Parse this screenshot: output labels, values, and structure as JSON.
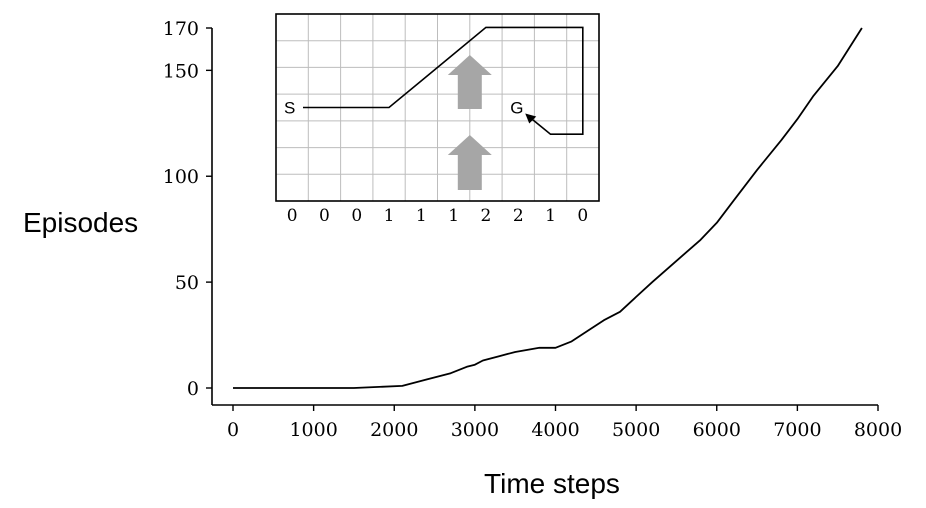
{
  "chart_data": {
    "type": "line",
    "xlabel": "Time steps",
    "ylabel": "Episodes",
    "xlim": [
      0,
      8000
    ],
    "ylim": [
      0,
      170
    ],
    "xticks": [
      0,
      1000,
      2000,
      3000,
      4000,
      5000,
      6000,
      7000,
      8000
    ],
    "yticks": [
      0,
      50,
      100,
      150,
      170
    ],
    "x_tick_labels": [
      "0",
      "1000",
      "2000",
      "3000",
      "4000",
      "5000",
      "6000",
      "7000",
      "8000"
    ],
    "y_tick_labels": [
      "0",
      "50",
      "100",
      "150",
      "170"
    ],
    "grid": false,
    "series": [
      {
        "x": [
          0,
          1000,
          1500,
          2100,
          2400,
          2700,
          2900,
          3000,
          3100,
          3300,
          3500,
          3800,
          4000,
          4200,
          4400,
          4600,
          4800,
          5000,
          5200,
          5500,
          5800,
          6000,
          6200,
          6500,
          6800,
          7000,
          7200,
          7500,
          7800
        ],
        "y": [
          0,
          0,
          0,
          1,
          4,
          7,
          10,
          11,
          13,
          15,
          17,
          19,
          19,
          22,
          27,
          32,
          36,
          43,
          50,
          60,
          70,
          78,
          88,
          103,
          117,
          127,
          138,
          152,
          170
        ]
      }
    ],
    "inset": {
      "start_label": "S",
      "goal_label": "G",
      "wind_strengths": [
        "0",
        "0",
        "0",
        "1",
        "1",
        "1",
        "2",
        "2",
        "1",
        "0"
      ],
      "columns": 10,
      "rows": 7,
      "start_cell": [
        0,
        3
      ],
      "goal_cell": [
        7,
        3
      ],
      "path": [
        [
          0,
          3
        ],
        [
          3,
          3
        ],
        [
          4,
          2
        ],
        [
          5,
          1
        ],
        [
          6,
          0
        ],
        [
          9,
          0
        ],
        [
          9,
          4
        ],
        [
          8,
          4
        ],
        [
          7,
          3
        ]
      ],
      "wind_arrow_color": "#a6a6a6"
    }
  }
}
